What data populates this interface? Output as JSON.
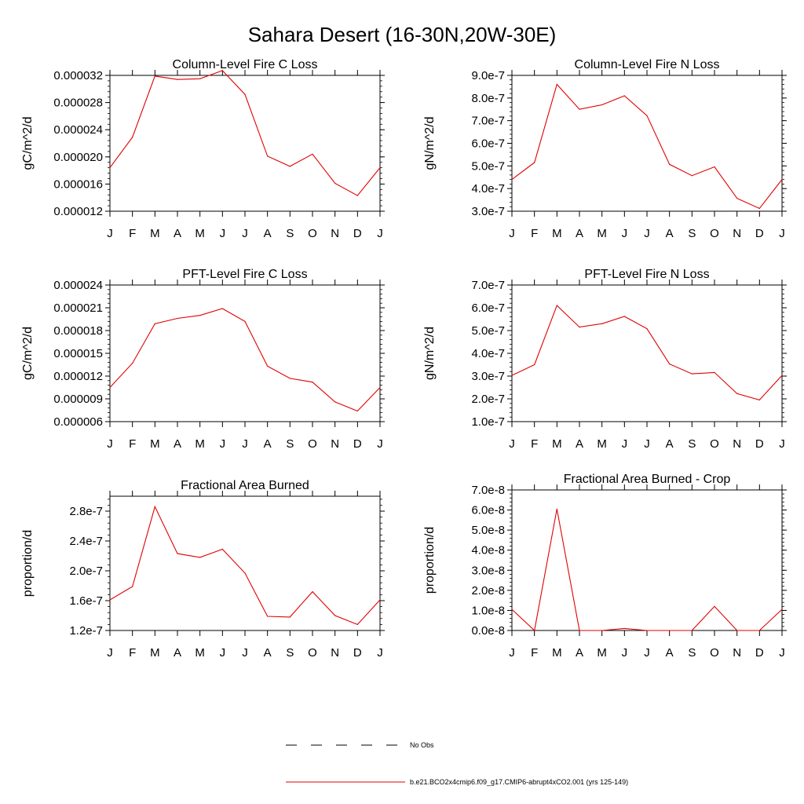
{
  "page_title": "Sahara Desert (16-30N,20W-30E)",
  "legend": {
    "obs_label": "No Obs",
    "model_label": "b.e21.BCO2x4cmip6.f09_g17.CMIP6-abrupt4xCO2.001 (yrs 125-149)",
    "model_color": "#e00000",
    "obs_color": "#000000"
  },
  "chart_data": [
    {
      "type": "line",
      "title": "Column-Level Fire C Loss",
      "ylabel": "gC/m^2/d",
      "categories": [
        "J",
        "F",
        "M",
        "A",
        "M",
        "J",
        "J",
        "A",
        "S",
        "O",
        "N",
        "D",
        "J"
      ],
      "ylim": [
        1.2e-05,
        3.2e-05
      ],
      "yticks": [
        1.2e-05,
        1.6e-05,
        2e-05,
        2.4e-05,
        2.8e-05,
        3.2e-05
      ],
      "ytick_labels": [
        "0.000012",
        "0.000016",
        "0.000020",
        "0.000024",
        "0.000028",
        "0.000032"
      ],
      "series": [
        {
          "values": [
            1.84e-05,
            2.29e-05,
            3.19e-05,
            3.14e-05,
            3.15e-05,
            3.27e-05,
            2.92e-05,
            2.01e-05,
            1.86e-05,
            2.04e-05,
            1.61e-05,
            1.43e-05,
            1.84e-05
          ]
        }
      ]
    },
    {
      "type": "line",
      "title": "Column-Level Fire N Loss",
      "ylabel": "gN/m^2/d",
      "categories": [
        "J",
        "F",
        "M",
        "A",
        "M",
        "J",
        "J",
        "A",
        "S",
        "O",
        "N",
        "D",
        "J"
      ],
      "ylim": [
        3e-07,
        9e-07
      ],
      "yticks": [
        3e-07,
        4e-07,
        5e-07,
        6e-07,
        7e-07,
        8e-07,
        9e-07
      ],
      "ytick_labels": [
        "3.0e-7",
        "4.0e-7",
        "5.0e-7",
        "6.0e-7",
        "7.0e-7",
        "8.0e-7",
        "9.0e-7"
      ],
      "series": [
        {
          "values": [
            4.4e-07,
            5.15e-07,
            8.6e-07,
            7.5e-07,
            7.7e-07,
            8.1e-07,
            7.22e-07,
            5.07e-07,
            4.57e-07,
            4.96e-07,
            3.57e-07,
            3.12e-07,
            4.4e-07
          ]
        }
      ]
    },
    {
      "type": "line",
      "title": "PFT-Level Fire C Loss",
      "ylabel": "gC/m^2/d",
      "categories": [
        "J",
        "F",
        "M",
        "A",
        "M",
        "J",
        "J",
        "A",
        "S",
        "O",
        "N",
        "D",
        "J"
      ],
      "ylim": [
        6e-06,
        2.4e-05
      ],
      "yticks": [
        6e-06,
        9e-06,
        1.2e-05,
        1.5e-05,
        1.8e-05,
        2.1e-05,
        2.4e-05
      ],
      "ytick_labels": [
        "0.000006",
        "0.000009",
        "0.000012",
        "0.000015",
        "0.000018",
        "0.000021",
        "0.000024"
      ],
      "series": [
        {
          "values": [
            1.05e-05,
            1.37e-05,
            1.89e-05,
            1.96e-05,
            2e-05,
            2.09e-05,
            1.92e-05,
            1.33e-05,
            1.17e-05,
            1.12e-05,
            8.6e-06,
            7.4e-06,
            1.05e-05
          ]
        }
      ]
    },
    {
      "type": "line",
      "title": "PFT-Level Fire N Loss",
      "ylabel": "gN/m^2/d",
      "categories": [
        "J",
        "F",
        "M",
        "A",
        "M",
        "J",
        "J",
        "A",
        "S",
        "O",
        "N",
        "D",
        "J"
      ],
      "ylim": [
        1e-07,
        7e-07
      ],
      "yticks": [
        1e-07,
        2e-07,
        3e-07,
        4e-07,
        5e-07,
        6e-07,
        7e-07
      ],
      "ytick_labels": [
        "1.0e-7",
        "2.0e-7",
        "3.0e-7",
        "4.0e-7",
        "5.0e-7",
        "6.0e-7",
        "7.0e-7"
      ],
      "series": [
        {
          "values": [
            3.03e-07,
            3.5e-07,
            6.1e-07,
            5.15e-07,
            5.3e-07,
            5.62e-07,
            5.08e-07,
            3.53e-07,
            3.1e-07,
            3.16e-07,
            2.23e-07,
            1.95e-07,
            3.03e-07
          ]
        }
      ]
    },
    {
      "type": "line",
      "title": "Fractional Area Burned",
      "ylabel": "proportion/d",
      "categories": [
        "J",
        "F",
        "M",
        "A",
        "M",
        "J",
        "J",
        "A",
        "S",
        "O",
        "N",
        "D",
        "J"
      ],
      "ylim": [
        1.2e-07,
        3e-07
      ],
      "yticks": [
        1.2e-07,
        1.6e-07,
        2e-07,
        2.4e-07,
        2.8e-07
      ],
      "ytick_labels": [
        "1.2e-7",
        "1.6e-7",
        "2.0e-7",
        "2.4e-7",
        "2.8e-7"
      ],
      "series": [
        {
          "values": [
            1.61e-07,
            1.79e-07,
            2.86e-07,
            2.23e-07,
            2.18e-07,
            2.29e-07,
            1.97e-07,
            1.39e-07,
            1.38e-07,
            1.72e-07,
            1.4e-07,
            1.28e-07,
            1.61e-07
          ]
        }
      ]
    },
    {
      "type": "line",
      "title": "Fractional Area Burned - Crop",
      "ylabel": "proportion/d",
      "categories": [
        "J",
        "F",
        "M",
        "A",
        "M",
        "J",
        "J",
        "A",
        "S",
        "O",
        "N",
        "D",
        "J"
      ],
      "ylim": [
        0.0,
        7e-08
      ],
      "yticks": [
        0.0,
        1e-08,
        2e-08,
        3e-08,
        4e-08,
        5e-08,
        6e-08,
        7e-08
      ],
      "ytick_labels": [
        "0.0e-8",
        "1.0e-8",
        "2.0e-8",
        "3.0e-8",
        "4.0e-8",
        "5.0e-8",
        "6.0e-8",
        "7.0e-8"
      ],
      "series": [
        {
          "values": [
            1.05e-08,
            0.0,
            6.05e-08,
            0.0,
            0.0,
            1e-09,
            0.0,
            0.0,
            0.0,
            1.2e-08,
            0.0,
            0.0,
            1.05e-08
          ]
        }
      ]
    }
  ]
}
